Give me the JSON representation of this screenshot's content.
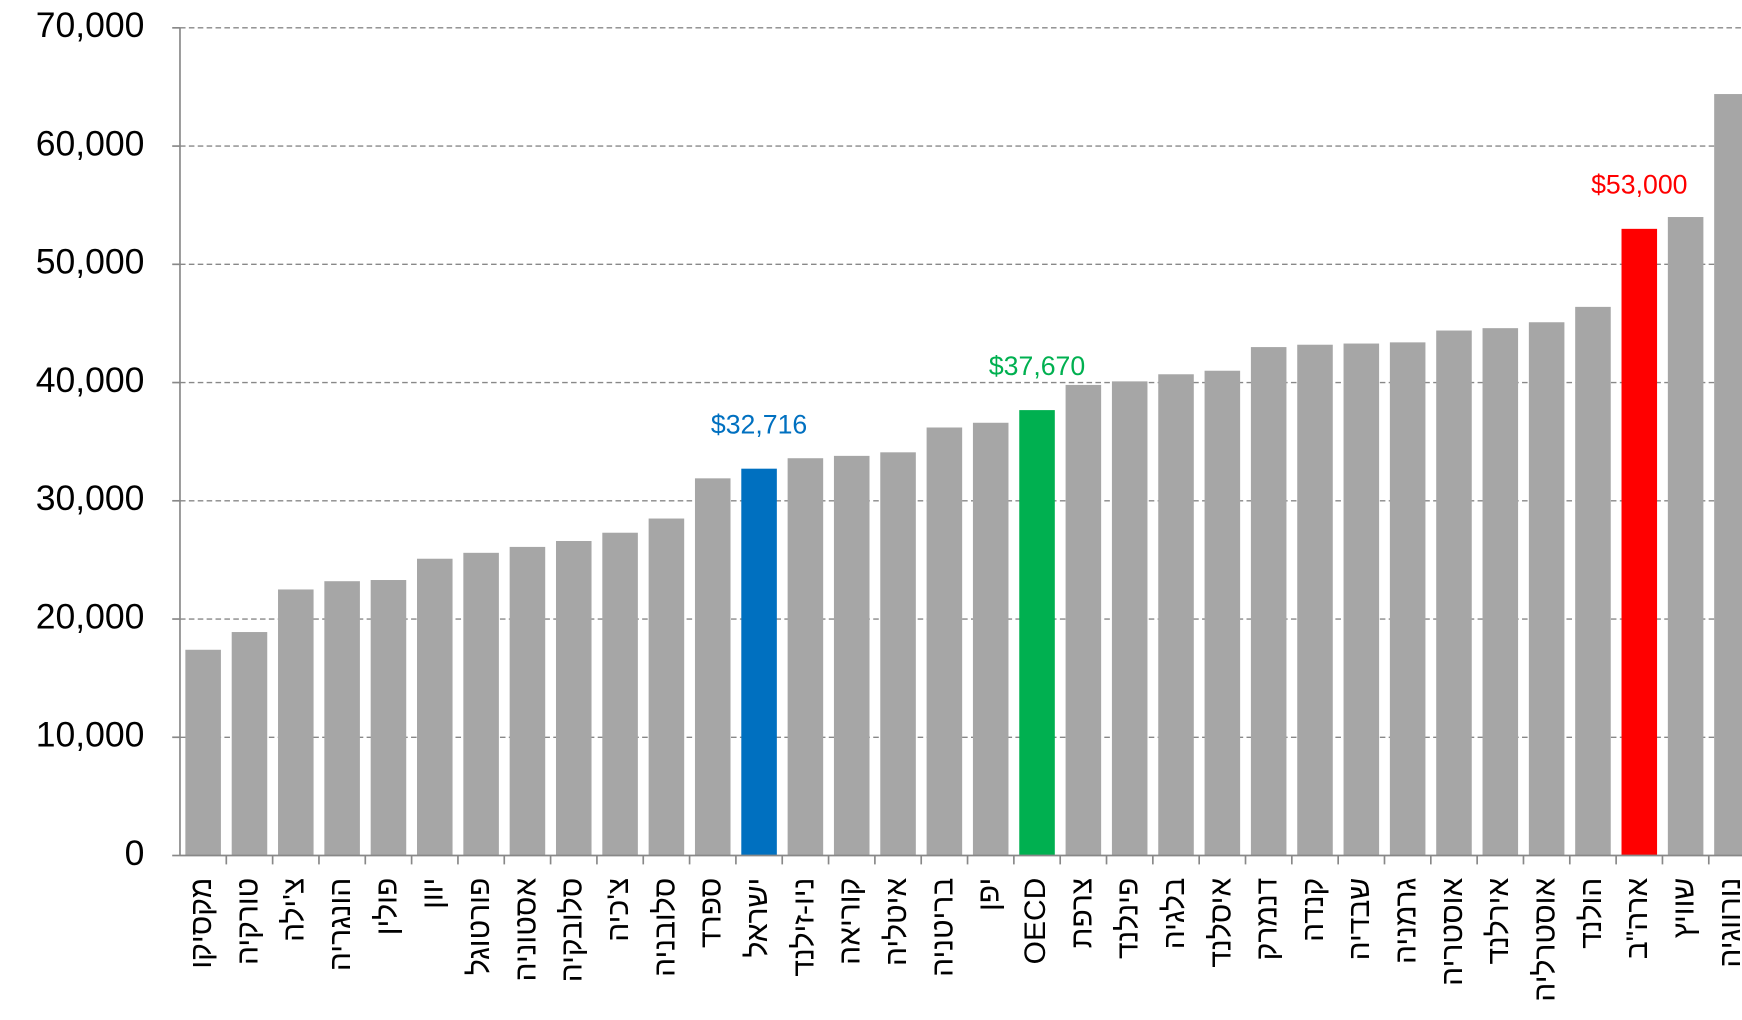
{
  "chart_data": {
    "type": "bar",
    "categories": [
      "מקסיקו",
      "טורקיה",
      "צ'ילה",
      "הונגריה",
      "פולין",
      "יוון",
      "פורטוגל",
      "אסטוניה",
      "סלובקיה",
      "צ'כיה",
      "סלובניה",
      "ספרד",
      "ישראל",
      "ניו-זילנד",
      "קוריאה",
      "איטליה",
      "בריטניה",
      "יפן",
      "OECD",
      "צרפת",
      "פינלנד",
      "בלגיה",
      "איסלנד",
      "דנמרק",
      "קנדה",
      "שבדיה",
      "גרמניה",
      "אוסטריה",
      "אירלנד",
      "אוסטרליה",
      "הולנד",
      "ארה\"ב",
      "שוויץ",
      "נורווגיה"
    ],
    "values": [
      17400,
      18900,
      22500,
      23200,
      23300,
      25100,
      25600,
      26100,
      26600,
      27300,
      28500,
      31900,
      32716,
      33600,
      33800,
      34100,
      36200,
      36600,
      37670,
      39800,
      40100,
      40700,
      41000,
      43000,
      43200,
      43300,
      43400,
      44400,
      44600,
      45100,
      46400,
      53000,
      54000,
      64400
    ],
    "value_labels": [
      null,
      null,
      null,
      null,
      null,
      null,
      null,
      null,
      null,
      null,
      null,
      null,
      "$32,716",
      null,
      null,
      null,
      null,
      null,
      "$37,670",
      null,
      null,
      null,
      null,
      null,
      null,
      null,
      null,
      null,
      null,
      null,
      null,
      "$53,000",
      null,
      null
    ],
    "colors": [
      "#a6a6a6",
      "#a6a6a6",
      "#a6a6a6",
      "#a6a6a6",
      "#a6a6a6",
      "#a6a6a6",
      "#a6a6a6",
      "#a6a6a6",
      "#a6a6a6",
      "#a6a6a6",
      "#a6a6a6",
      "#a6a6a6",
      "#0070c0",
      "#a6a6a6",
      "#a6a6a6",
      "#a6a6a6",
      "#a6a6a6",
      "#a6a6a6",
      "#00b050",
      "#a6a6a6",
      "#a6a6a6",
      "#a6a6a6",
      "#a6a6a6",
      "#a6a6a6",
      "#a6a6a6",
      "#a6a6a6",
      "#a6a6a6",
      "#a6a6a6",
      "#a6a6a6",
      "#a6a6a6",
      "#a6a6a6",
      "#ff0000",
      "#a6a6a6",
      "#a6a6a6"
    ],
    "ylim": [
      0,
      70000
    ],
    "yticks": [
      {
        "value": 0,
        "label": "0"
      },
      {
        "value": 10000,
        "label": "10,000"
      },
      {
        "value": 20000,
        "label": "20,000"
      },
      {
        "value": 30000,
        "label": "30,000"
      },
      {
        "value": 40000,
        "label": "40,000"
      },
      {
        "value": 50000,
        "label": "50,000"
      },
      {
        "value": 60000,
        "label": "60,000"
      },
      {
        "value": 70000,
        "label": "70,000"
      }
    ],
    "grid": true
  }
}
